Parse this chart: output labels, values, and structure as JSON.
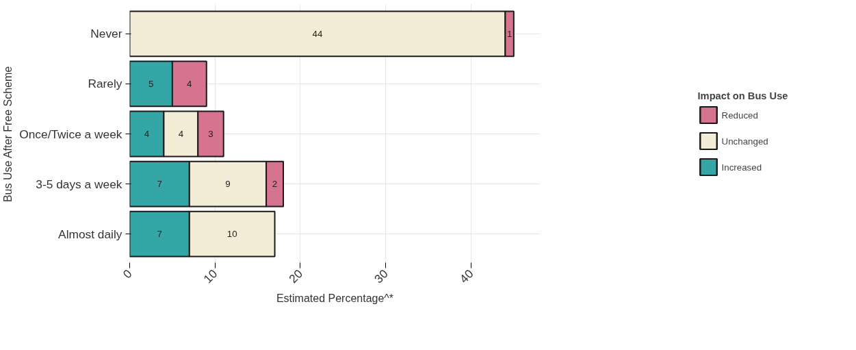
{
  "chart_data": {
    "type": "bar",
    "orientation": "horizontal",
    "stacked": true,
    "xlabel": "Estimated Percentage^*",
    "ylabel": "Bus Use After Free Scheme",
    "legend_title": "Impact on Bus Use",
    "categories": [
      "Never",
      "Rarely",
      "Once/Twice a week",
      "3-5 days a week",
      "Almost daily"
    ],
    "series": [
      {
        "name": "Increased",
        "color": "#35a6a6",
        "values": [
          null,
          5,
          4,
          7,
          7
        ]
      },
      {
        "name": "Unchanged",
        "color": "#f3ecd6",
        "values": [
          44,
          null,
          4,
          9,
          10
        ]
      },
      {
        "name": "Reduced",
        "color": "#d6738e",
        "values": [
          1,
          4,
          3,
          2,
          null
        ]
      }
    ],
    "data_labels": true,
    "xlim": [
      0,
      48.1
    ],
    "xticks": [
      0,
      10,
      20,
      30,
      40
    ],
    "grid": true,
    "legend": "right"
  }
}
